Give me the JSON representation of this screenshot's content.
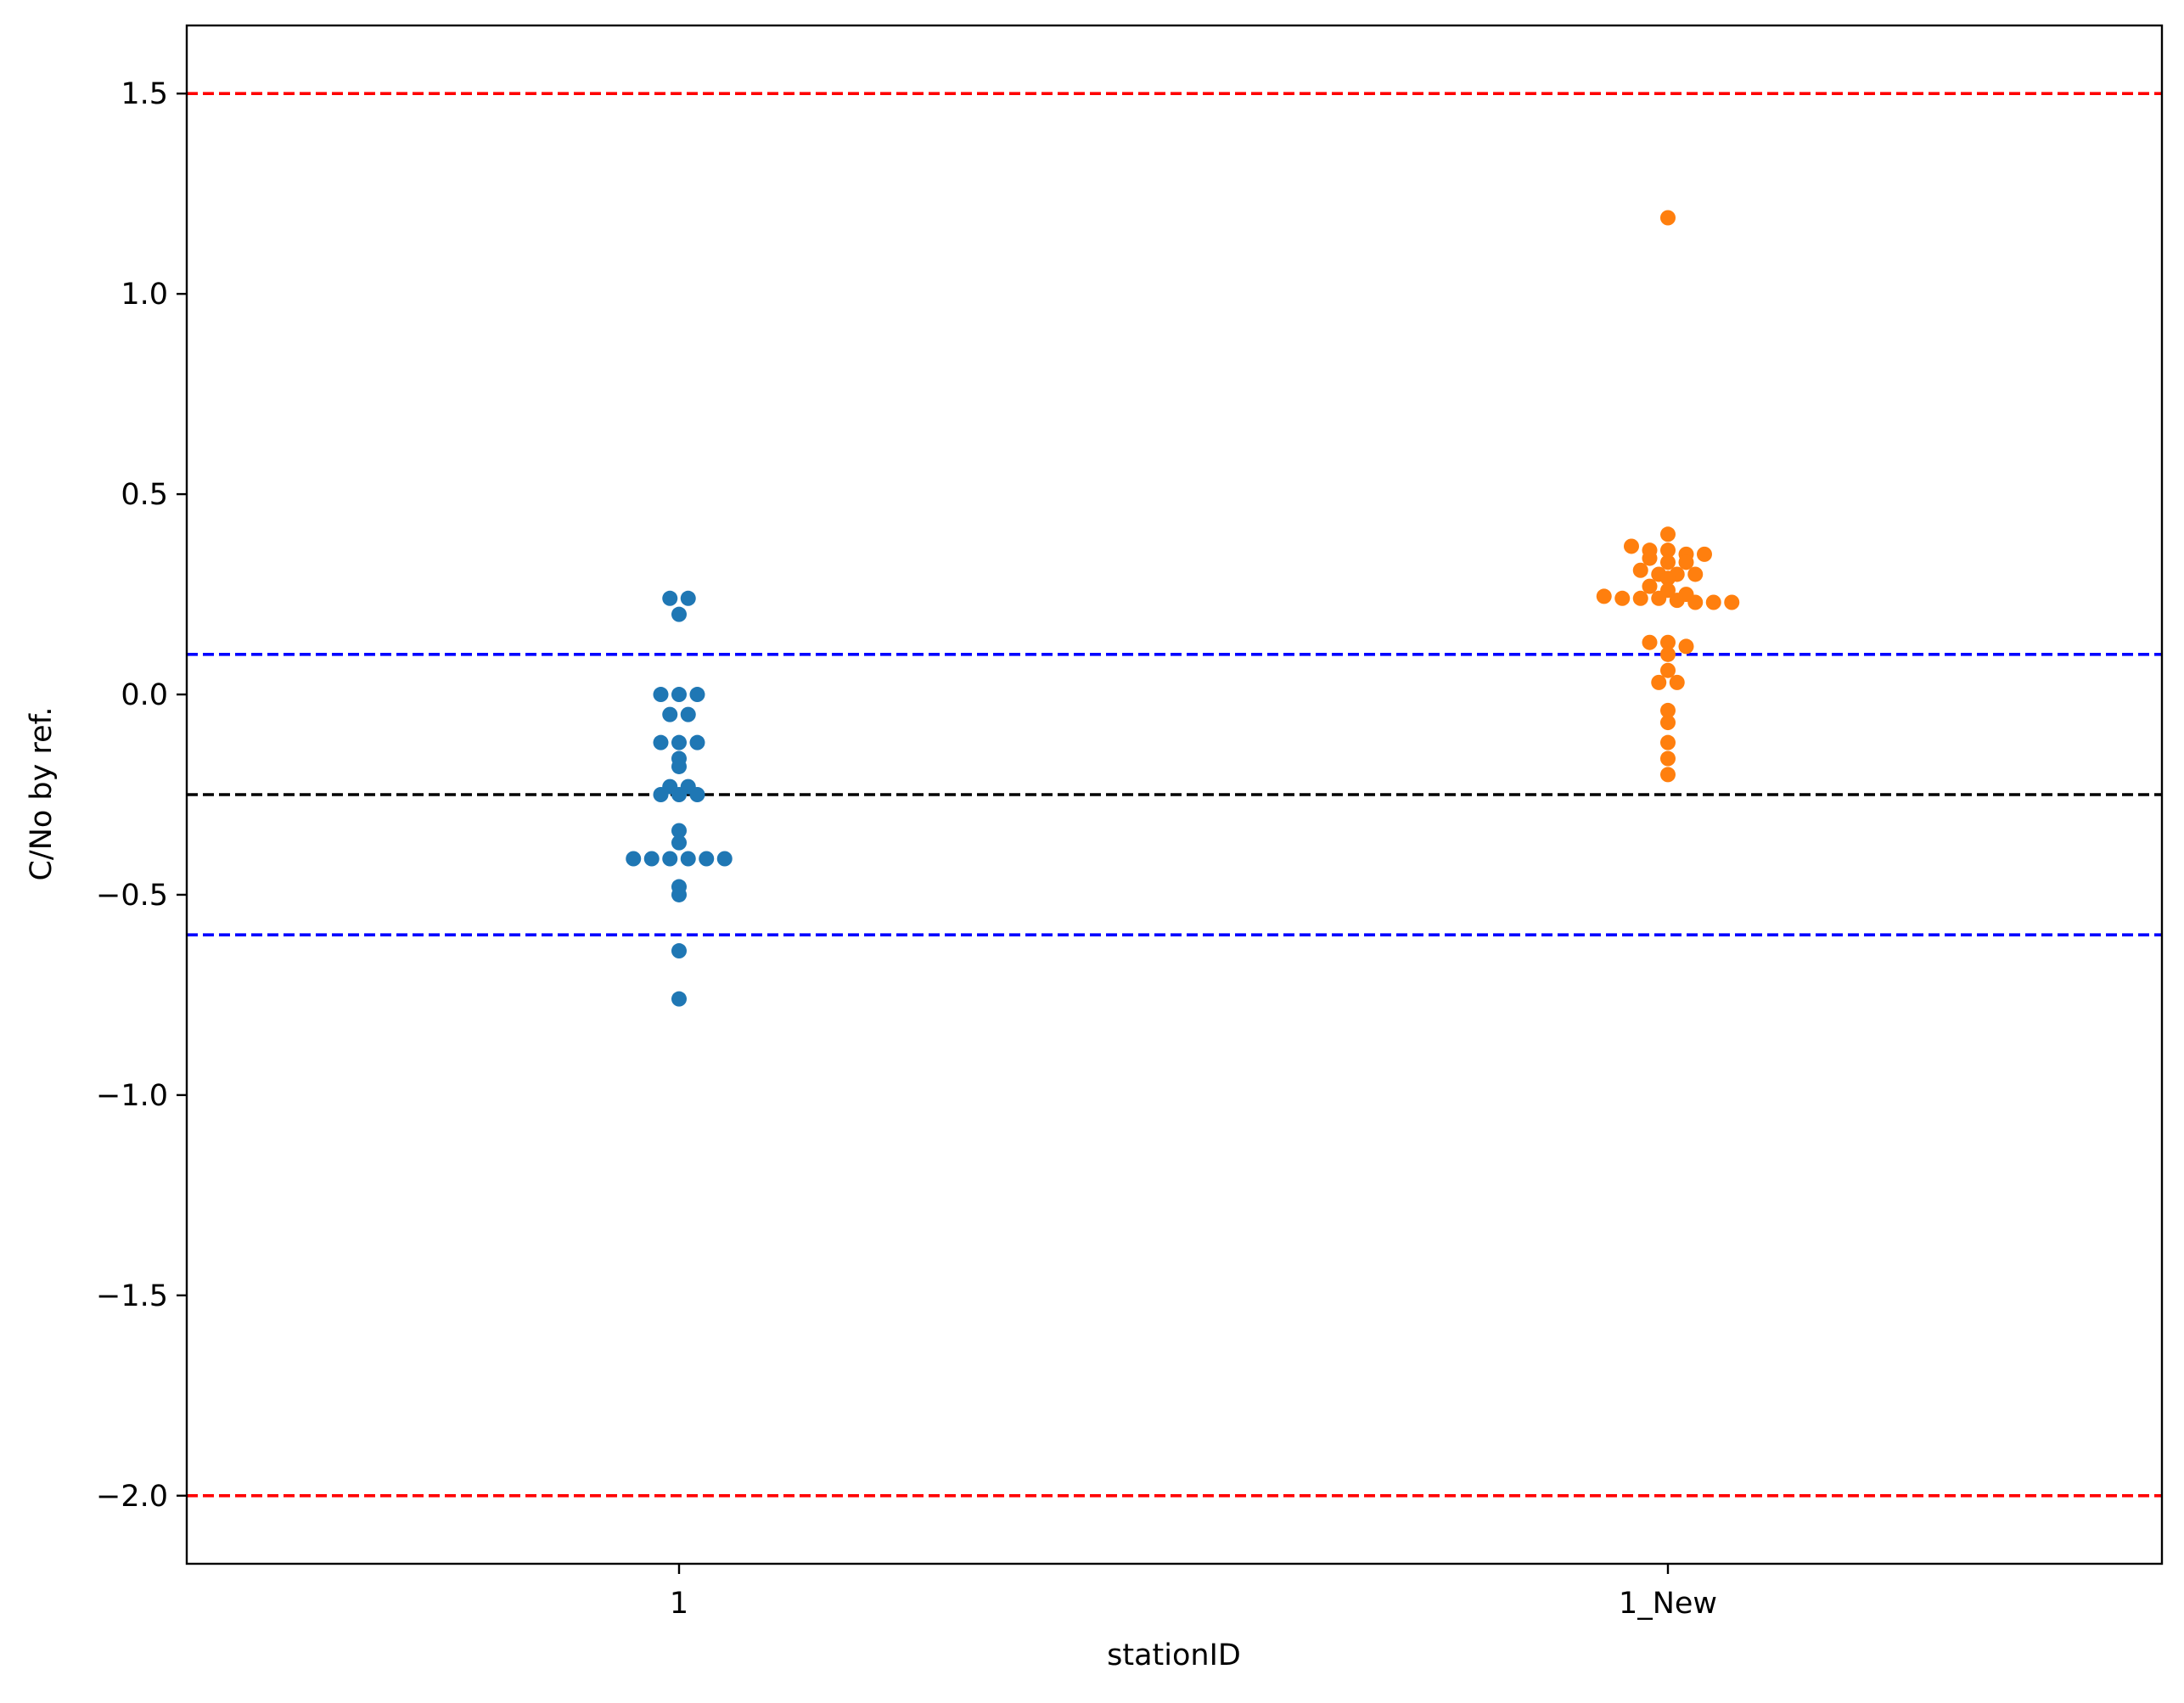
{
  "chart_data": {
    "type": "scatter",
    "subtype": "swarm",
    "title": "",
    "xlabel": "stationID",
    "ylabel": "C/No by ref.",
    "categories": [
      "1",
      "1_New"
    ],
    "ylim": [
      -2.17,
      1.67
    ],
    "yticks": [
      {
        "value": 1.5,
        "label": "1.5"
      },
      {
        "value": 1.0,
        "label": "1.0"
      },
      {
        "value": 0.5,
        "label": "0.5"
      },
      {
        "value": 0.0,
        "label": "0.0"
      },
      {
        "value": -0.5,
        "label": "−0.5"
      },
      {
        "value": -1.0,
        "label": "−1.0"
      },
      {
        "value": -1.5,
        "label": "−1.5"
      },
      {
        "value": -2.0,
        "label": "−2.0"
      }
    ],
    "grid": false,
    "series": [
      {
        "category": "1",
        "color": "#1f77b4",
        "values": [
          0.24,
          0.24,
          0.2,
          0.0,
          0.0,
          0.0,
          -0.05,
          -0.05,
          -0.12,
          -0.12,
          -0.12,
          -0.16,
          -0.18,
          -0.23,
          -0.23,
          -0.25,
          -0.25,
          -0.25,
          -0.34,
          -0.37,
          -0.41,
          -0.41,
          -0.41,
          -0.41,
          -0.41,
          -0.41,
          -0.48,
          -0.5,
          -0.64,
          -0.76
        ]
      },
      {
        "category": "1_New",
        "color": "#ff7f0e",
        "values": [
          1.19,
          0.4,
          0.37,
          0.36,
          0.36,
          0.35,
          0.35,
          0.34,
          0.33,
          0.33,
          0.31,
          0.3,
          0.3,
          0.3,
          0.29,
          0.27,
          0.26,
          0.25,
          0.245,
          0.24,
          0.24,
          0.24,
          0.235,
          0.23,
          0.23,
          0.23,
          0.13,
          0.13,
          0.12,
          0.1,
          0.06,
          0.03,
          0.03,
          -0.04,
          -0.07,
          -0.12,
          -0.16,
          -0.2
        ]
      }
    ],
    "reference_lines": [
      {
        "y": 1.5,
        "color": "#ff0000",
        "style": "dashed"
      },
      {
        "y": 0.1,
        "color": "#0000ff",
        "style": "dashed"
      },
      {
        "y": -0.25,
        "color": "#000000",
        "style": "dashed"
      },
      {
        "y": -0.6,
        "color": "#0000ff",
        "style": "dashed"
      },
      {
        "y": -2.0,
        "color": "#ff0000",
        "style": "dashed"
      }
    ]
  }
}
